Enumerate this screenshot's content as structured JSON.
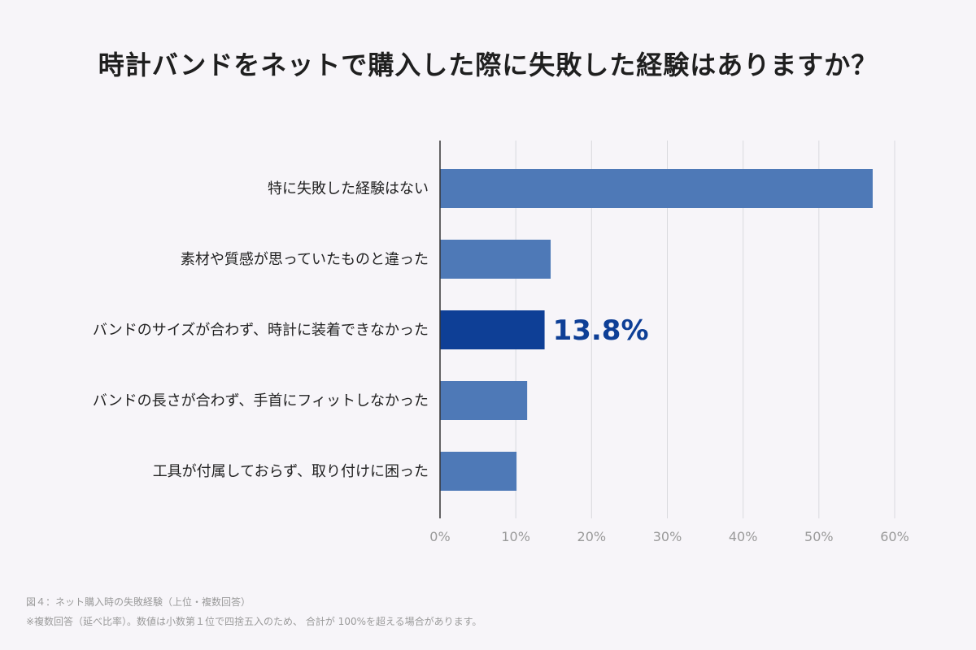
{
  "title": "時計バンドをネットで購入した際に失敗した経験はありますか？",
  "chart_data": {
    "type": "bar",
    "orientation": "horizontal",
    "categories": [
      "特に失敗した経験はない",
      "素材や質感が思っていたものと違った",
      "バンドのサイズが合わず、時計に装着できなかった",
      "バンドの長さが合わず、手首にフィットしなかった",
      "工具が付属しておらず、取り付けに困った"
    ],
    "values": [
      57.1,
      14.6,
      13.8,
      11.5,
      10.1
    ],
    "highlight_index": 2,
    "highlight_label": "13.8%",
    "xlim": [
      0,
      60
    ],
    "xticks": [
      0,
      10,
      20,
      30,
      40,
      50,
      60
    ],
    "xtick_labels": [
      "0%",
      "10%",
      "20%",
      "30%",
      "40%",
      "50%",
      "60%"
    ],
    "grid": true,
    "colors": {
      "bar": "#4e79b7",
      "highlight": "#0e3f96",
      "highlight_text": "#0e3f96",
      "grid": "#d9d9de",
      "axis": "#333333",
      "tick_text": "#9a9a9a"
    }
  },
  "notes": {
    "caption": "図４：ネット購入時の失敗経験（上位・複数回答）",
    "footnote": "※複数回答（延べ比率）。数値は小数第１位で四捨五入のため、 合計が 100%を超える場合があります。"
  }
}
